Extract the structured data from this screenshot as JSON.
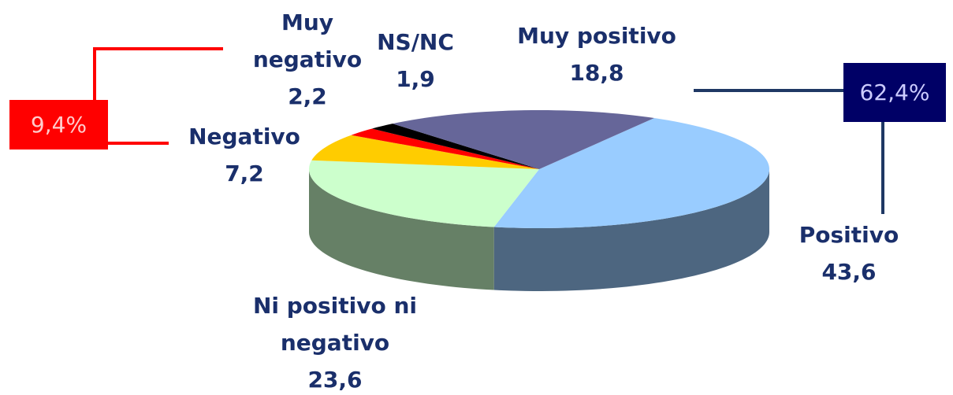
{
  "chart_data": {
    "type": "pie3d",
    "categories": [
      "Positivo",
      "Ni positivo ni negativo",
      "Negativo",
      "Muy negativo",
      "NS/NC",
      "Muy positivo"
    ],
    "values": [
      43.6,
      23.6,
      7.2,
      2.2,
      1.9,
      18.8
    ],
    "value_labels": [
      "43,6",
      "23,6",
      "7,2",
      "2,2",
      "1,9",
      "18,8"
    ],
    "colors": [
      "#99ccff",
      "#ccffcc",
      "#ffcc00",
      "#ff0000",
      "#000000",
      "#666699"
    ],
    "annotations": [
      {
        "value": 62.4,
        "label": "62,4%",
        "color": "#000066"
      },
      {
        "value": 9.4,
        "label": "9,4%",
        "color": "#ff0000"
      }
    ]
  }
}
